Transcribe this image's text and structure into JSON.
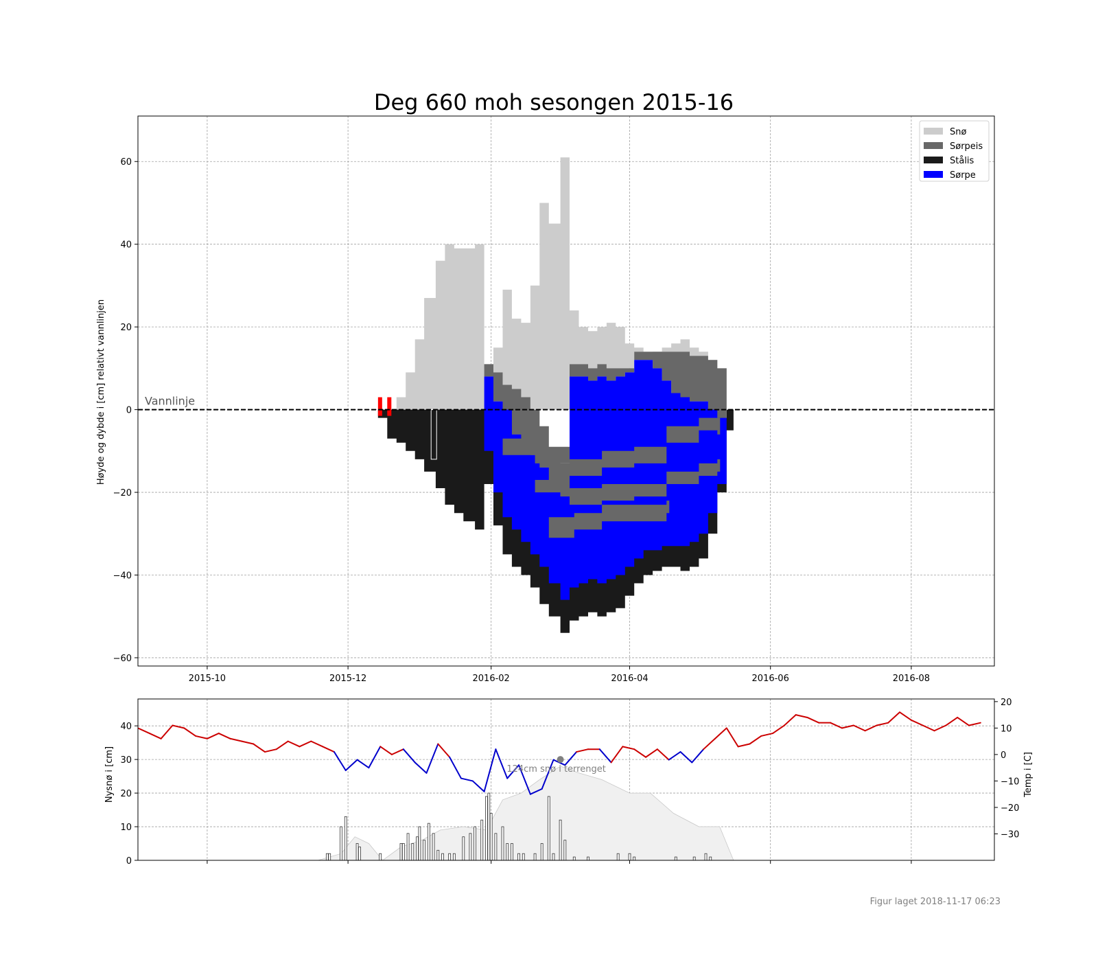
{
  "chart_data": [
    {
      "type": "area",
      "title": "Deg 660 moh sesongen 2015-16",
      "ylabel": "Høyde og dybde i [cm] relativt vannlinjen",
      "xlabel": "",
      "xlim": [
        "2015-09-01",
        "2016-09-06"
      ],
      "ylim": [
        -62,
        71
      ],
      "grid": true,
      "x_tick_labels": [
        "2015-10",
        "2015-12",
        "2016-02",
        "2016-04",
        "2016-06",
        "2016-08"
      ],
      "x_ticks": [
        "2015-10-01",
        "2015-12-01",
        "2016-02-01",
        "2016-04-01",
        "2016-06-01",
        "2016-08-01"
      ],
      "y_ticks": [
        -60,
        -40,
        -20,
        0,
        20,
        40,
        60
      ],
      "y_tick_labels": [
        "−60",
        "−40",
        "−20",
        "0",
        "20",
        "40",
        "60"
      ],
      "water_line": {
        "y": 0,
        "label": "Vannlinje"
      },
      "legend": {
        "position": "top-right",
        "entries": [
          {
            "name": "Snø",
            "color": "#cccccc"
          },
          {
            "name": "Sørpeis",
            "color": "#686868"
          },
          {
            "name": "Stålis",
            "color": "#1a1a1a"
          },
          {
            "name": "Sørpe",
            "color": "#0000ff"
          }
        ]
      },
      "warning_markers": {
        "color": "#ff0000",
        "dates": [
          "2015-12-14",
          "2015-12-18"
        ]
      },
      "profile": {
        "dates": [
          "2015-12-14",
          "2015-12-18",
          "2015-12-22",
          "2015-12-26",
          "2015-12-30",
          "2016-01-03",
          "2016-01-08",
          "2016-01-12",
          "2016-01-16",
          "2016-01-20",
          "2016-01-25",
          "2016-01-29",
          "2016-02-02",
          "2016-02-06",
          "2016-02-10",
          "2016-02-14",
          "2016-02-18",
          "2016-02-22",
          "2016-02-26",
          "2016-03-02",
          "2016-03-06",
          "2016-03-10",
          "2016-03-14",
          "2016-03-18",
          "2016-03-22",
          "2016-03-26",
          "2016-03-30",
          "2016-04-03",
          "2016-04-07",
          "2016-04-11",
          "2016-04-15",
          "2016-04-19",
          "2016-04-23",
          "2016-04-27",
          "2016-05-01",
          "2016-05-05",
          "2016-05-09",
          "2016-05-13",
          "2016-05-16"
        ],
        "snow_top": [
          0,
          0,
          3,
          9,
          17,
          27,
          36,
          40,
          39,
          39,
          40,
          10,
          15,
          29,
          22,
          21,
          30,
          50,
          45,
          61,
          24,
          20,
          19,
          20,
          21,
          20,
          16,
          15,
          14,
          13,
          15,
          16,
          17,
          15,
          14,
          8,
          0,
          0,
          0
        ],
        "sorpeis_top": [
          0,
          0,
          0,
          0,
          0,
          0,
          0,
          0,
          0,
          0,
          0,
          11,
          9,
          6,
          5,
          3,
          0,
          -4,
          -10,
          -13,
          11,
          11,
          10,
          11,
          10,
          10,
          10,
          14,
          14,
          14,
          14,
          14,
          14,
          13,
          13,
          12,
          10,
          0,
          0
        ],
        "sorpe_top": [
          0,
          0,
          0,
          0,
          0,
          0,
          0,
          0,
          0,
          0,
          0,
          8,
          2,
          0,
          -6,
          -9,
          -11,
          -14,
          -18,
          -21,
          8,
          8,
          7,
          8,
          7,
          8,
          9,
          12,
          12,
          10,
          7,
          4,
          3,
          2,
          2,
          0,
          -2,
          0,
          0
        ],
        "sorpe_bottom": [
          0,
          0,
          0,
          0,
          0,
          0,
          0,
          0,
          0,
          0,
          0,
          -10,
          -20,
          -26,
          -29,
          -32,
          -35,
          -38,
          -42,
          -46,
          -43,
          -42,
          -41,
          -42,
          -41,
          -40,
          -38,
          -36,
          -34,
          -34,
          -33,
          -33,
          -33,
          -32,
          -30,
          -25,
          -18,
          0,
          0
        ],
        "ice_bottom": [
          -2,
          -7,
          -8,
          -10,
          -12,
          -15,
          -19,
          -23,
          -25,
          -27,
          -29,
          -18,
          -28,
          -35,
          -38,
          -40,
          -43,
          -47,
          -50,
          -54,
          -51,
          -50,
          -49,
          -50,
          -49,
          -48,
          -45,
          -42,
          -40,
          -39,
          -38,
          -38,
          -39,
          -38,
          -36,
          -30,
          -20,
          -5,
          0
        ],
        "sorpeis_bands": [
          {
            "dates": [
              "2016-02-06",
              "2016-02-20",
              "2016-03-06",
              "2016-03-20",
              "2016-04-03",
              "2016-04-17",
              "2016-05-01",
              "2016-05-09"
            ],
            "top": [
              -7,
              -9,
              -12,
              -10,
              -9,
              -4,
              -2,
              -2
            ],
            "bottom": [
              -11,
              -13,
              -16,
              -14,
              -13,
              -8,
              -5,
              -6
            ]
          },
          {
            "dates": [
              "2016-02-20",
              "2016-03-06",
              "2016-03-20",
              "2016-04-03",
              "2016-04-17",
              "2016-05-01",
              "2016-05-09"
            ],
            "top": [
              -17,
              -19,
              -18,
              -18,
              -15,
              -13,
              -12
            ],
            "bottom": [
              -20,
              -23,
              -22,
              -21,
              -18,
              -16,
              -15
            ]
          },
          {
            "dates": [
              "2016-02-26",
              "2016-03-08",
              "2016-03-20",
              "2016-04-03",
              "2016-04-17"
            ],
            "top": [
              -26,
              -25,
              -23,
              -23,
              -22
            ],
            "bottom": [
              -31,
              -29,
              -27,
              -27,
              -25
            ]
          }
        ]
      },
      "isolated_ice_block": {
        "date": "2016-01-06",
        "top": 0,
        "bottom": -12
      }
    },
    {
      "type": "bar",
      "ylabel": "Nysnø i [cm]",
      "y2label": "Temp i [C]",
      "xlim": [
        "2015-09-01",
        "2016-09-06"
      ],
      "ylim": [
        0,
        48
      ],
      "y2lim": [
        -40,
        21
      ],
      "y_ticks": [
        0,
        10,
        20,
        30,
        40
      ],
      "y_tick_labels": [
        "0",
        "10",
        "20",
        "30",
        "40"
      ],
      "y2_ticks": [
        -30,
        -20,
        -10,
        0,
        10,
        20
      ],
      "y2_tick_labels": [
        "−30",
        "−20",
        "−10",
        "0",
        "10",
        "20"
      ],
      "x_ticks": [
        "2015-10-01",
        "2015-12-01",
        "2016-02-01",
        "2016-04-01",
        "2016-06-01",
        "2016-08-01"
      ],
      "grid": true,
      "annotation": {
        "text": "124cm snø i terrenget",
        "date": "2016-03-02",
        "value": 30
      },
      "snow_depth": {
        "dates": [
          "2015-11-18",
          "2015-11-28",
          "2015-12-04",
          "2015-12-10",
          "2015-12-16",
          "2015-12-24",
          "2016-01-02",
          "2016-01-10",
          "2016-01-20",
          "2016-01-30",
          "2016-02-06",
          "2016-02-14",
          "2016-02-22",
          "2016-03-02",
          "2016-03-10",
          "2016-03-20",
          "2016-04-01",
          "2016-04-10",
          "2016-04-20",
          "2016-05-01",
          "2016-05-10",
          "2016-05-16",
          "2016-05-20"
        ],
        "values": [
          0,
          2,
          7,
          5,
          0,
          4,
          6,
          9,
          10,
          9,
          18,
          20,
          24,
          28,
          26,
          24,
          20,
          20,
          14,
          10,
          10,
          0,
          0
        ]
      },
      "new_snow": {
        "dates": [
          "2015-11-22",
          "2015-11-23",
          "2015-11-28",
          "2015-11-30",
          "2015-12-05",
          "2015-12-06",
          "2015-12-15",
          "2015-12-24",
          "2015-12-25",
          "2015-12-27",
          "2015-12-29",
          "2015-12-31",
          "2016-01-01",
          "2016-01-03",
          "2016-01-05",
          "2016-01-07",
          "2016-01-09",
          "2016-01-11",
          "2016-01-14",
          "2016-01-16",
          "2016-01-20",
          "2016-01-23",
          "2016-01-25",
          "2016-01-28",
          "2016-01-30",
          "2016-01-31",
          "2016-02-01",
          "2016-02-03",
          "2016-02-06",
          "2016-02-08",
          "2016-02-10",
          "2016-02-13",
          "2016-02-15",
          "2016-02-20",
          "2016-02-23",
          "2016-02-26",
          "2016-02-28",
          "2016-03-02",
          "2016-03-04",
          "2016-03-08",
          "2016-03-14",
          "2016-03-27",
          "2016-04-01",
          "2016-04-03",
          "2016-04-21",
          "2016-04-29",
          "2016-05-04",
          "2016-05-06"
        ],
        "values": [
          2,
          2,
          10,
          13,
          5,
          4,
          2,
          5,
          5,
          8,
          5,
          7,
          10,
          6,
          11,
          8,
          3,
          2,
          2,
          2,
          7,
          8,
          10,
          12,
          19,
          20,
          14,
          8,
          10,
          5,
          5,
          2,
          2,
          2,
          5,
          19,
          2,
          12,
          6,
          1,
          1,
          2,
          2,
          1,
          1,
          1,
          2,
          1
        ]
      },
      "temperature": {
        "dates": [
          "2015-09-01",
          "2015-09-06",
          "2015-09-11",
          "2015-09-16",
          "2015-09-21",
          "2015-09-26",
          "2015-10-01",
          "2015-10-06",
          "2015-10-11",
          "2015-10-16",
          "2015-10-21",
          "2015-10-26",
          "2015-10-31",
          "2015-11-05",
          "2015-11-10",
          "2015-11-15",
          "2015-11-20",
          "2015-11-25",
          "2015-11-30",
          "2015-12-05",
          "2015-12-10",
          "2015-12-15",
          "2015-12-20",
          "2015-12-25",
          "2015-12-30",
          "2016-01-04",
          "2016-01-09",
          "2016-01-14",
          "2016-01-19",
          "2016-01-24",
          "2016-01-29",
          "2016-02-03",
          "2016-02-08",
          "2016-02-13",
          "2016-02-18",
          "2016-02-23",
          "2016-02-28",
          "2016-03-04",
          "2016-03-09",
          "2016-03-14",
          "2016-03-19",
          "2016-03-24",
          "2016-03-29",
          "2016-04-03",
          "2016-04-08",
          "2016-04-13",
          "2016-04-18",
          "2016-04-23",
          "2016-04-28",
          "2016-05-03",
          "2016-05-08",
          "2016-05-13",
          "2016-05-18",
          "2016-05-23",
          "2016-05-28",
          "2016-06-02",
          "2016-06-07",
          "2016-06-12",
          "2016-06-17",
          "2016-06-22",
          "2016-06-27",
          "2016-07-02",
          "2016-07-07",
          "2016-07-12",
          "2016-07-17",
          "2016-07-22",
          "2016-07-27",
          "2016-08-01",
          "2016-08-06",
          "2016-08-11",
          "2016-08-16",
          "2016-08-21",
          "2016-08-26",
          "2016-08-31"
        ],
        "values": [
          10,
          8,
          6,
          11,
          10,
          7,
          6,
          8,
          6,
          5,
          4,
          1,
          2,
          5,
          3,
          5,
          3,
          1,
          -6,
          -2,
          -5,
          3,
          0,
          2,
          -3,
          -7,
          4,
          -1,
          -9,
          -10,
          -14,
          2,
          -9,
          -4,
          -15,
          -13,
          -2,
          -4,
          1,
          2,
          2,
          -3,
          3,
          2,
          -1,
          2,
          -2,
          1,
          -3,
          2,
          6,
          10,
          3,
          4,
          7,
          8,
          11,
          15,
          14,
          12,
          12,
          10,
          11,
          9,
          11,
          12,
          16,
          13,
          11,
          9,
          11,
          14,
          11,
          12
        ],
        "freeze_color": "#0000cc",
        "thaw_color": "#cc0000",
        "freeze_threshold": 0
      }
    }
  ],
  "footer": {
    "timestamp": "Figur laget 2018-11-17 06:23"
  }
}
